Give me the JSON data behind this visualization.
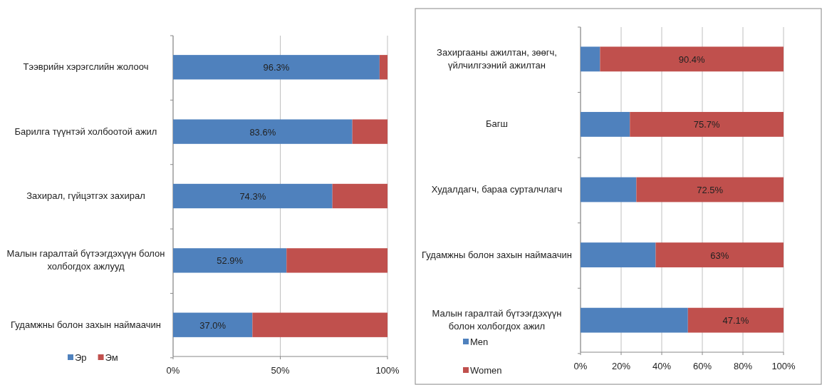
{
  "chart_data": [
    {
      "type": "bar",
      "orientation": "horizontal",
      "stacked": true,
      "categories": [
        "Тээврийн хэрэгслийн жолооч",
        "Барилга түүнтэй холбоотой ажил",
        "Захирал, гүйцэтгэх захирал",
        "Малын гаралтай бүтээгдэхүүн болон холбогдох ажлууд",
        "Гудамжны болон захын наймаачин"
      ],
      "series": [
        {
          "name": "Эр",
          "color": "#4f81bd",
          "values": [
            96.3,
            83.6,
            74.3,
            52.9,
            37.0
          ],
          "value_labels": [
            "96.3%",
            "83.6%",
            "74.3%",
            "52.9%",
            "37.0%"
          ]
        },
        {
          "name": "Эм",
          "color": "#c0504d",
          "values": [
            3.7,
            16.4,
            25.7,
            47.1,
            63.0
          ],
          "value_labels": [
            null,
            null,
            null,
            null,
            null
          ]
        }
      ],
      "xlim": [
        0,
        100
      ],
      "xticks": [
        {
          "value": 0,
          "label": "0%"
        },
        {
          "value": 50,
          "label": "50%"
        },
        {
          "value": 100,
          "label": "100%"
        }
      ],
      "grid": "x",
      "legend": "bottom left"
    },
    {
      "type": "bar",
      "orientation": "horizontal",
      "stacked": true,
      "categories": [
        "Захиргааны ажилтан, зөөгч, үйлчилгээний ажилтан",
        "Багш",
        "Худалдагч, бараа сурталчлагч",
        "Гудамжны болон захын наймаачин",
        "Малын гаралтай бүтээгдэхүүн болон холбогдох ажил"
      ],
      "series": [
        {
          "name": "Men",
          "color": "#4f81bd",
          "values": [
            9.6,
            24.3,
            27.5,
            37,
            52.9
          ],
          "value_labels": [
            null,
            null,
            null,
            null,
            null
          ]
        },
        {
          "name": "Women",
          "color": "#c0504d",
          "values": [
            90.4,
            75.7,
            72.5,
            63,
            47.1
          ],
          "value_labels": [
            "90.4%",
            "75.7%",
            "72.5%",
            "63%",
            "47.1%"
          ]
        }
      ],
      "xlim": [
        0,
        100
      ],
      "xticks": [
        {
          "value": 0,
          "label": "0%"
        },
        {
          "value": 20,
          "label": "20%"
        },
        {
          "value": 40,
          "label": "40%"
        },
        {
          "value": 60,
          "label": "60%"
        },
        {
          "value": 80,
          "label": "80%"
        },
        {
          "value": 100,
          "label": "100%"
        }
      ],
      "grid": "x",
      "legend": "bottom left"
    }
  ]
}
